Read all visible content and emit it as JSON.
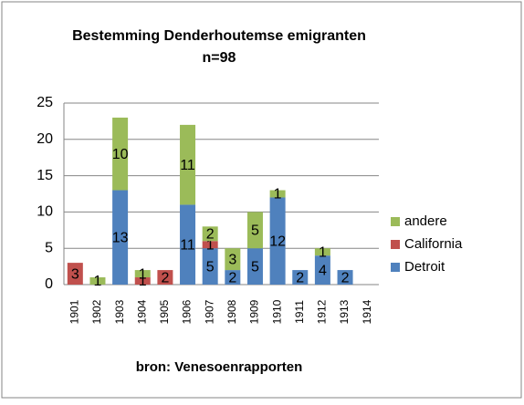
{
  "chart_data": {
    "type": "stacked_bar",
    "title": "Bestemming Denderhoutemse emigranten",
    "subtitle": "n=98",
    "x_label": "bron: Venesoenrapporten",
    "categories": [
      "1901",
      "1902",
      "1903",
      "1904",
      "1905",
      "1906",
      "1907",
      "1908",
      "1909",
      "1910",
      "1911",
      "1912",
      "1913",
      "1914"
    ],
    "series": [
      {
        "name": "Detroit",
        "color": "#4f81bd",
        "values": [
          null,
          null,
          13,
          null,
          null,
          11,
          5,
          2,
          5,
          12,
          2,
          4,
          2,
          null
        ]
      },
      {
        "name": "California",
        "color": "#c0504d",
        "values": [
          3,
          null,
          null,
          1,
          2,
          null,
          1,
          null,
          null,
          null,
          null,
          null,
          null,
          null
        ]
      },
      {
        "name": "andere",
        "color": "#9bbb59",
        "values": [
          null,
          1,
          10,
          1,
          null,
          11,
          2,
          3,
          5,
          1,
          null,
          1,
          null,
          null
        ]
      }
    ],
    "ylim": [
      0,
      25
    ],
    "yticks": [
      0,
      5,
      10,
      15,
      20,
      25
    ],
    "grid": true,
    "legend": "right"
  }
}
